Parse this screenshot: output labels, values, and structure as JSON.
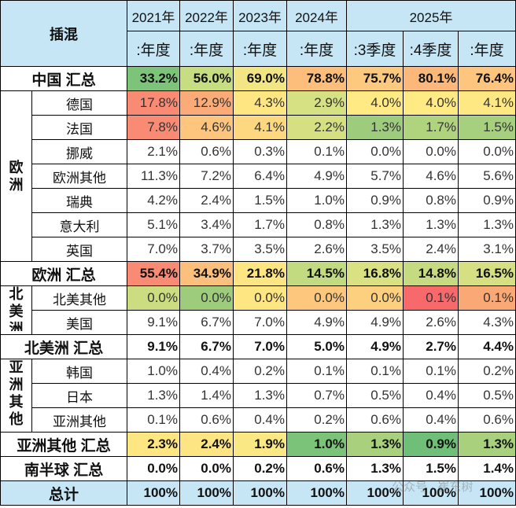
{
  "header": {
    "corner": "插混",
    "years": [
      "2021年",
      "2022年",
      "2023年",
      "2024年",
      "2025年"
    ],
    "periods": [
      ":年度",
      ":年度",
      ":年度",
      ":年度",
      ":3季度",
      ":4季度",
      ":年度"
    ]
  },
  "rows": [
    {
      "type": "sum",
      "label": "中国 汇总",
      "values": [
        "33.2%",
        "56.0%",
        "69.0%",
        "78.8%",
        "75.7%",
        "80.1%",
        "76.4%"
      ],
      "colors": [
        "#7dc47a",
        "#c6dd82",
        "#f2e584",
        "#fdbd7b",
        "#fdc97f",
        "#fcb87a",
        "#fdc57e"
      ]
    },
    {
      "type": "group",
      "region": "欧洲",
      "span": 7,
      "items": [
        {
          "label": "德国",
          "values": [
            "17.8%",
            "12.9%",
            "4.3%",
            "2.9%",
            "4.0%",
            "4.0%",
            "4.1%"
          ],
          "colors": [
            "#f98a73",
            "#fbab77",
            "#fee683",
            "#d5e182",
            "#ffea84",
            "#ffea84",
            "#fee883"
          ]
        },
        {
          "label": "法国",
          "values": [
            "7.8%",
            "4.6%",
            "4.1%",
            "2.2%",
            "1.3%",
            "1.7%",
            "1.5%"
          ],
          "colors": [
            "#f98a73",
            "#fdc57e",
            "#fed880",
            "#d6e082",
            "#9ccc7c",
            "#b0d47e",
            "#a6d07d"
          ]
        },
        {
          "label": "挪威",
          "values": [
            "2.1%",
            "0.6%",
            "0.3%",
            "0.1%",
            "0.0%",
            "0.0%",
            "0.0%"
          ]
        },
        {
          "label": "欧洲其他",
          "values": [
            "11.3%",
            "7.2%",
            "6.4%",
            "4.9%",
            "5.7%",
            "4.6%",
            "5.6%"
          ]
        },
        {
          "label": "瑞典",
          "values": [
            "4.2%",
            "2.4%",
            "1.5%",
            "1.0%",
            "0.9%",
            "0.8%",
            "0.9%"
          ]
        },
        {
          "label": "意大利",
          "values": [
            "5.1%",
            "3.4%",
            "1.7%",
            "0.8%",
            "1.3%",
            "1.3%",
            "1.3%"
          ]
        },
        {
          "label": "英国",
          "values": [
            "7.0%",
            "3.7%",
            "3.5%",
            "2.6%",
            "3.5%",
            "2.4%",
            "3.1%"
          ]
        }
      ]
    },
    {
      "type": "sum",
      "label": "欧洲 汇总",
      "values": [
        "55.4%",
        "34.9%",
        "21.8%",
        "14.5%",
        "16.8%",
        "14.8%",
        "16.5%"
      ],
      "colors": [
        "#f98a73",
        "#fcc07c",
        "#fee583",
        "#c2da80",
        "#dae182",
        "#c6db81",
        "#d6e082"
      ]
    },
    {
      "type": "group",
      "region": "北美洲",
      "span": 2,
      "items": [
        {
          "label": "北美其他",
          "values": [
            "0.0%",
            "0.0%",
            "0.0%",
            "0.0%",
            "0.0%",
            "0.1%",
            "0.1%"
          ],
          "colors": [
            "#cbdc81",
            "#9ccc7c",
            "#fee683",
            "#fdc87e",
            "#fdd07f",
            "#f8696b",
            "#fba877"
          ]
        },
        {
          "label": "美国",
          "values": [
            "9.1%",
            "6.7%",
            "7.0%",
            "4.9%",
            "4.9%",
            "2.6%",
            "4.3%"
          ]
        }
      ]
    },
    {
      "type": "sum",
      "label": "北美洲 汇总",
      "values": [
        "9.1%",
        "6.7%",
        "7.0%",
        "5.0%",
        "4.9%",
        "2.7%",
        "4.4%"
      ]
    },
    {
      "type": "group",
      "region": "亚洲其他",
      "span": 3,
      "items": [
        {
          "label": "韩国",
          "values": [
            "1.0%",
            "0.4%",
            "0.2%",
            "0.1%",
            "0.1%",
            "0.1%",
            "0.2%"
          ]
        },
        {
          "label": "日本",
          "values": [
            "1.3%",
            "1.4%",
            "1.3%",
            "0.7%",
            "0.5%",
            "0.4%",
            "0.5%"
          ]
        },
        {
          "label": "亚洲其他",
          "values": [
            "0.1%",
            "0.6%",
            "0.4%",
            "0.2%",
            "0.6%",
            "0.4%",
            "0.6%"
          ]
        }
      ]
    },
    {
      "type": "sum",
      "label": "亚洲其他 汇总",
      "values": [
        "2.3%",
        "2.4%",
        "1.9%",
        "1.0%",
        "1.3%",
        "0.9%",
        "1.3%"
      ],
      "colors": [
        "#fee683",
        "#fee583",
        "#f9e884",
        "#7cc37a",
        "#a8d07d",
        "#6fbf79",
        "#a8d07d"
      ]
    },
    {
      "type": "sum",
      "label": "南半球 汇总",
      "values": [
        "0.0%",
        "0.0%",
        "0.2%",
        "0.6%",
        "1.3%",
        "1.5%",
        "1.4%"
      ]
    },
    {
      "type": "total",
      "label": "总计",
      "values": [
        "100%",
        "100%",
        "100%",
        "100%",
        "100%",
        "100%",
        "100%"
      ]
    }
  ],
  "watermark": "公众号 · 崔东树"
}
